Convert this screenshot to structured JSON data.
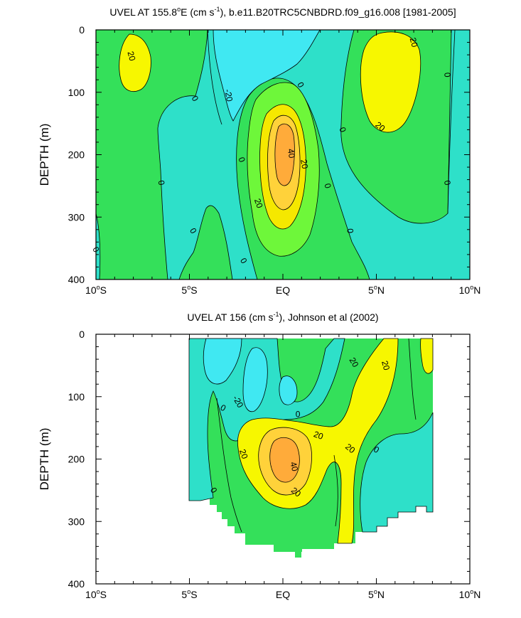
{
  "chart_data": [
    {
      "type": "contour",
      "title_prefix": "UVEL AT 155.8",
      "title_sup1": "o",
      "title_mid": "E (cm s",
      "title_sup2": "-1",
      "title_suffix": "), b.e11.B20TRC5CNBDRD.f09_g16.008 [1981-2005]",
      "ylabel": "DEPTH (m)",
      "xlim": [
        -10,
        10
      ],
      "ylim": [
        400,
        0
      ],
      "x_ticks": [
        {
          "value": -10,
          "label": "10",
          "deg": "o",
          "hemi": "S"
        },
        {
          "value": -5,
          "label": "5",
          "deg": "o",
          "hemi": "S"
        },
        {
          "value": 0,
          "label": "EQ",
          "deg": "",
          "hemi": ""
        },
        {
          "value": 5,
          "label": "5",
          "deg": "o",
          "hemi": "N"
        },
        {
          "value": 10,
          "label": "10",
          "deg": "o",
          "hemi": "N"
        }
      ],
      "y_ticks": [
        {
          "value": 0,
          "label": "0"
        },
        {
          "value": 100,
          "label": "100"
        },
        {
          "value": 200,
          "label": "200"
        },
        {
          "value": 300,
          "label": "300"
        },
        {
          "value": 400,
          "label": "400"
        }
      ],
      "contour_labels": [
        {
          "text": "20",
          "lat": -8.1,
          "depth": 42,
          "rot": 75
        },
        {
          "text": "0",
          "lat": -4.7,
          "depth": 110,
          "rot": 60
        },
        {
          "text": "-20",
          "lat": -2.9,
          "depth": 105,
          "rot": 80
        },
        {
          "text": "0",
          "lat": 0.95,
          "depth": 88,
          "rot": 60
        },
        {
          "text": "0",
          "lat": -2.2,
          "depth": 208,
          "rot": 70
        },
        {
          "text": "40",
          "lat": 0.45,
          "depth": 198,
          "rot": 80
        },
        {
          "text": "20",
          "lat": 1.15,
          "depth": 215,
          "rot": 80
        },
        {
          "text": "20",
          "lat": -1.3,
          "depth": 278,
          "rot": 70
        },
        {
          "text": "0",
          "lat": -2.1,
          "depth": 370,
          "rot": 60
        },
        {
          "text": "0",
          "lat": -6.5,
          "depth": 245,
          "rot": 80
        },
        {
          "text": "0",
          "lat": -4.8,
          "depth": 322,
          "rot": 60
        },
        {
          "text": "0",
          "lat": -10.0,
          "depth": 352,
          "rot": 60
        },
        {
          "text": "0",
          "lat": 3.2,
          "depth": 160,
          "rot": 70
        },
        {
          "text": "0",
          "lat": 2.4,
          "depth": 250,
          "rot": 75
        },
        {
          "text": "0",
          "lat": 3.6,
          "depth": 322,
          "rot": 85
        },
        {
          "text": "20",
          "lat": 7.0,
          "depth": 20,
          "rot": 75
        },
        {
          "text": "20",
          "lat": 5.2,
          "depth": 155,
          "rot": 40
        },
        {
          "text": "0",
          "lat": 8.8,
          "depth": 72,
          "rot": 85
        },
        {
          "text": "0",
          "lat": 8.8,
          "depth": 245,
          "rot": 80
        }
      ]
    },
    {
      "type": "contour",
      "title_prefix": "UVEL AT 156 (cm s",
      "title_sup1": "-1",
      "title_mid": "), Johnson et al (2002)",
      "title_sup2": "",
      "title_suffix": "",
      "ylabel": "DEPTH (m)",
      "xlim": [
        -10,
        10
      ],
      "ylim": [
        400,
        0
      ],
      "x_ticks": [
        {
          "value": -10,
          "label": "10",
          "deg": "o",
          "hemi": "S"
        },
        {
          "value": -5,
          "label": "5",
          "deg": "o",
          "hemi": "S"
        },
        {
          "value": 0,
          "label": "EQ",
          "deg": "",
          "hemi": ""
        },
        {
          "value": 5,
          "label": "5",
          "deg": "o",
          "hemi": "N"
        },
        {
          "value": 10,
          "label": "10",
          "deg": "o",
          "hemi": "N"
        }
      ],
      "y_ticks": [
        {
          "value": 0,
          "label": "0"
        },
        {
          "value": 100,
          "label": "100"
        },
        {
          "value": 200,
          "label": "200"
        },
        {
          "value": 300,
          "label": "300"
        },
        {
          "value": 400,
          "label": "400"
        }
      ],
      "contour_labels": [
        {
          "text": "-20",
          "lat": -2.4,
          "depth": 108,
          "rot": 60
        },
        {
          "text": "0",
          "lat": -3.2,
          "depth": 118,
          "rot": 30
        },
        {
          "text": "0",
          "lat": 0.8,
          "depth": 128,
          "rot": 0
        },
        {
          "text": "20",
          "lat": 1.9,
          "depth": 162,
          "rot": 20
        },
        {
          "text": "20",
          "lat": 3.8,
          "depth": 45,
          "rot": 60
        },
        {
          "text": "20",
          "lat": 5.5,
          "depth": 50,
          "rot": 75
        },
        {
          "text": "20",
          "lat": -2.1,
          "depth": 192,
          "rot": 70
        },
        {
          "text": "40",
          "lat": 0.6,
          "depth": 212,
          "rot": 75
        },
        {
          "text": "20",
          "lat": 3.6,
          "depth": 183,
          "rot": 40
        },
        {
          "text": "20",
          "lat": 0.7,
          "depth": 253,
          "rot": 40
        },
        {
          "text": "0",
          "lat": 5.0,
          "depth": 185,
          "rot": 30
        },
        {
          "text": "0",
          "lat": -3.7,
          "depth": 250,
          "rot": 60
        }
      ]
    }
  ]
}
